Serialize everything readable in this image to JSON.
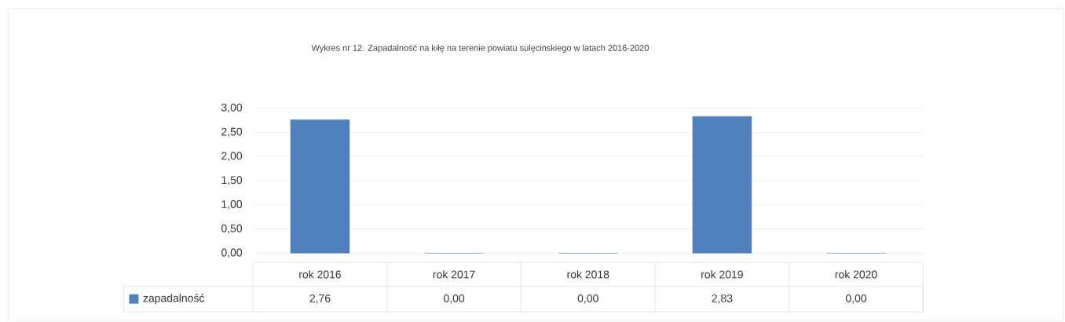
{
  "chart_data": {
    "type": "bar",
    "title": "Wykres nr 12. Zapadalność na kiłę na terenie powiatu sulęcińskiego w latach 2016-2020",
    "categories": [
      "rok 2016",
      "rok 2017",
      "rok 2018",
      "rok 2019",
      "rok 2020"
    ],
    "series": [
      {
        "name": "zapadalność",
        "color": "#4f81bd",
        "values": [
          2.76,
          0,
          0,
          2.83,
          0
        ],
        "value_labels": [
          "2,76",
          "0,00",
          "0,00",
          "2,83",
          "0,00"
        ]
      }
    ],
    "ylim": [
      0,
      3
    ],
    "yticks": [
      {
        "value": 0,
        "label": "0,00"
      },
      {
        "value": 0.5,
        "label": "0,50"
      },
      {
        "value": 1,
        "label": "1,00"
      },
      {
        "value": 1.5,
        "label": "1,50"
      },
      {
        "value": 2,
        "label": "2,00"
      },
      {
        "value": 2.5,
        "label": "2,50"
      },
      {
        "value": 3,
        "label": "3,00"
      }
    ],
    "grid": "y",
    "legend": "bottom"
  }
}
